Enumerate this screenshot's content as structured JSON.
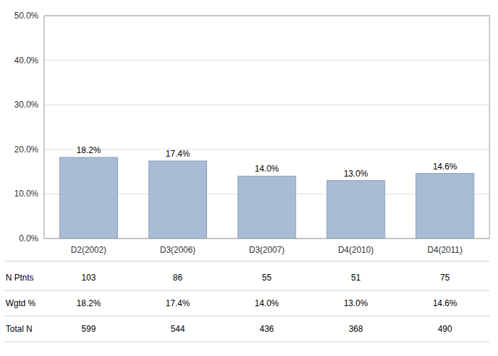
{
  "chart_data": {
    "type": "bar",
    "categories": [
      "D2(2002)",
      "D3(2006)",
      "D3(2007)",
      "D4(2010)",
      "D4(2011)"
    ],
    "values": [
      18.2,
      17.4,
      14.0,
      13.0,
      14.6
    ],
    "value_labels": [
      "18.2%",
      "17.4%",
      "14.0%",
      "13.0%",
      "14.6%"
    ],
    "data_labels": true,
    "color": "#a9bcd6",
    "ylim": [
      0,
      50
    ],
    "yticks": [
      {
        "value": 0,
        "label": "0.0%"
      },
      {
        "value": 10,
        "label": "10.0%"
      },
      {
        "value": 20,
        "label": "20.0%"
      },
      {
        "value": 30,
        "label": "30.0%"
      },
      {
        "value": 40,
        "label": "40.0%"
      },
      {
        "value": 50,
        "label": "50.0%"
      }
    ],
    "grid": true,
    "table": [
      {
        "name": "N Ptnts",
        "values": [
          103,
          86,
          55,
          51,
          75
        ]
      },
      {
        "name": "Wgtd %",
        "values": [
          18.2,
          17.4,
          14.0,
          13.0,
          14.6
        ],
        "value_labels": [
          "18.2%",
          "17.4%",
          "14.0%",
          "13.0%",
          "14.6%"
        ]
      },
      {
        "name": "Total N",
        "values": [
          599,
          544,
          436,
          368,
          490
        ]
      }
    ]
  }
}
